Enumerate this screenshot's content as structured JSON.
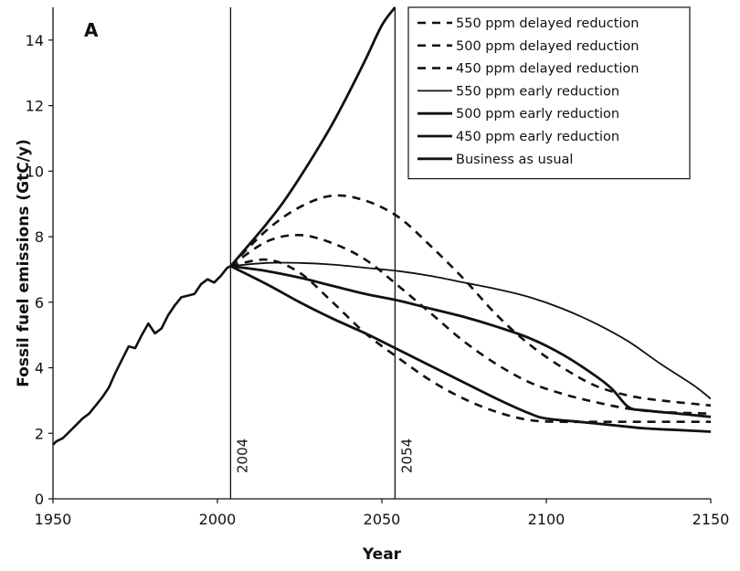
{
  "chart_data": {
    "type": "line",
    "panel_label": "A",
    "xlabel": "Year",
    "ylabel": "Fossil fuel emissions (GtC/y)",
    "xlim": [
      1950,
      2150
    ],
    "ylim": [
      0,
      15
    ],
    "xticks": [
      1950,
      2000,
      2050,
      2100,
      2150
    ],
    "yticks": [
      0,
      2,
      4,
      6,
      8,
      10,
      12,
      14
    ],
    "grid": false,
    "legend_position": "top-right",
    "vertical_markers": [
      {
        "x": 2004,
        "label": "2004"
      },
      {
        "x": 2054,
        "label": "2054"
      }
    ],
    "historical": {
      "x": [
        1950,
        1951,
        1953,
        1955,
        1957,
        1959,
        1961,
        1963,
        1965,
        1967,
        1969,
        1971,
        1973,
        1975,
        1977,
        1979,
        1981,
        1983,
        1985,
        1987,
        1989,
        1991,
        1993,
        1995,
        1997,
        1999,
        2001,
        2003,
        2004
      ],
      "y": [
        1.65,
        1.75,
        1.85,
        2.05,
        2.25,
        2.45,
        2.6,
        2.85,
        3.1,
        3.4,
        3.85,
        4.25,
        4.65,
        4.6,
        5.0,
        5.35,
        5.05,
        5.2,
        5.6,
        5.9,
        6.15,
        6.2,
        6.25,
        6.55,
        6.7,
        6.6,
        6.8,
        7.05,
        7.1
      ]
    },
    "series": [
      {
        "name": "550 ppm delayed reduction",
        "style": "dashed",
        "width": 2.6,
        "x": [
          2004,
          2015,
          2025,
          2035,
          2045,
          2055,
          2065,
          2075,
          2085,
          2095,
          2105,
          2115,
          2125,
          2135,
          2150
        ],
        "y": [
          7.1,
          8.2,
          8.9,
          9.25,
          9.1,
          8.6,
          7.7,
          6.7,
          5.6,
          4.7,
          4.0,
          3.45,
          3.15,
          3.0,
          2.85
        ]
      },
      {
        "name": "500 ppm delayed reduction",
        "style": "dashed",
        "width": 2.6,
        "x": [
          2004,
          2015,
          2025,
          2035,
          2045,
          2055,
          2065,
          2075,
          2085,
          2095,
          2105,
          2115,
          2125,
          2135,
          2150
        ],
        "y": [
          7.1,
          7.85,
          8.05,
          7.8,
          7.3,
          6.5,
          5.65,
          4.8,
          4.1,
          3.55,
          3.2,
          2.95,
          2.75,
          2.65,
          2.6
        ]
      },
      {
        "name": "450 ppm delayed reduction",
        "style": "dashed",
        "width": 2.6,
        "x": [
          2004,
          2015,
          2025,
          2035,
          2045,
          2055,
          2065,
          2075,
          2085,
          2095,
          2105,
          2115,
          2125,
          2135,
          2150
        ],
        "y": [
          7.1,
          7.3,
          6.9,
          6.0,
          5.05,
          4.3,
          3.6,
          3.05,
          2.65,
          2.4,
          2.35,
          2.35,
          2.35,
          2.35,
          2.35
        ]
      },
      {
        "name": "550 ppm early reduction",
        "style": "solid",
        "width": 1.8,
        "x": [
          2004,
          2015,
          2025,
          2035,
          2045,
          2055,
          2065,
          2075,
          2085,
          2095,
          2105,
          2115,
          2125,
          2135,
          2145,
          2150
        ],
        "y": [
          7.1,
          7.2,
          7.2,
          7.15,
          7.05,
          6.95,
          6.8,
          6.6,
          6.4,
          6.15,
          5.8,
          5.35,
          4.8,
          4.1,
          3.45,
          3.05
        ]
      },
      {
        "name": "500 ppm early reduction",
        "style": "solid",
        "width": 2.8,
        "x": [
          2004,
          2015,
          2025,
          2035,
          2045,
          2055,
          2065,
          2075,
          2085,
          2095,
          2105,
          2115,
          2120,
          2125,
          2130,
          2140,
          2150
        ],
        "y": [
          7.1,
          6.95,
          6.75,
          6.5,
          6.25,
          6.05,
          5.8,
          5.55,
          5.25,
          4.9,
          4.4,
          3.75,
          3.35,
          2.8,
          2.7,
          2.6,
          2.5
        ]
      },
      {
        "name": "450 ppm early reduction",
        "style": "solid",
        "width": 2.8,
        "x": [
          2004,
          2015,
          2025,
          2035,
          2045,
          2055,
          2065,
          2075,
          2085,
          2095,
          2100,
          2110,
          2120,
          2130,
          2140,
          2150
        ],
        "y": [
          7.1,
          6.55,
          6.0,
          5.5,
          5.05,
          4.55,
          4.05,
          3.55,
          3.05,
          2.6,
          2.45,
          2.35,
          2.25,
          2.15,
          2.1,
          2.05
        ]
      },
      {
        "name": "Business as usual",
        "style": "solid",
        "width": 2.8,
        "x": [
          2004,
          2010,
          2015,
          2020,
          2025,
          2030,
          2035,
          2040,
          2045,
          2050,
          2054
        ],
        "y": [
          7.1,
          7.8,
          8.4,
          9.05,
          9.8,
          10.6,
          11.45,
          12.4,
          13.4,
          14.45,
          15.0
        ]
      }
    ]
  }
}
